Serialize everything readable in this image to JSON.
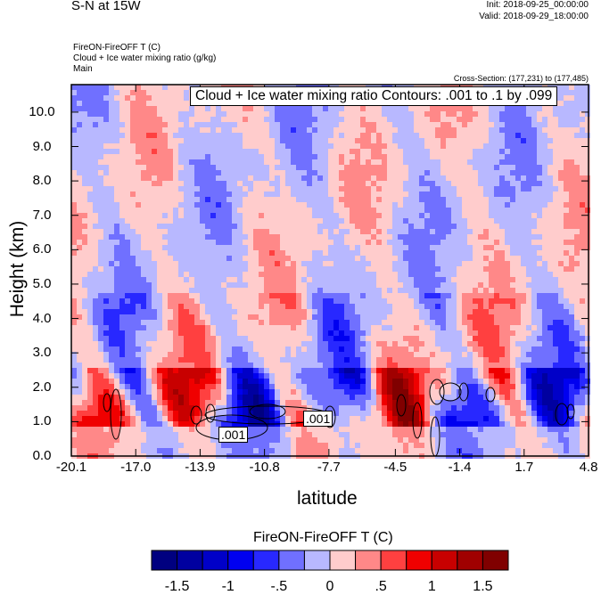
{
  "header": {
    "title": "S-N at 15W",
    "init": "Init: 2018-09-25_00:00:00",
    "valid": "Valid: 2018-09-29_18:00:00",
    "field1": "FireON-FireOFF T   (C)",
    "field2": "Cloud + Ice water mixing ratio   (g/kg)",
    "field3": "Main",
    "cross_section": "Cross-Section: (177,231) to (177,485)"
  },
  "chart_data": {
    "type": "heatmap",
    "title": "S-N at 15W",
    "xlabel": "latitude",
    "ylabel": "Height (km)",
    "xlim": [
      -20.1,
      4.8
    ],
    "ylim": [
      0.0,
      10.8
    ],
    "xticks": [
      "-20.1",
      "-17.0",
      "-13.9",
      "-10.8",
      "-7.7",
      "-4.5",
      "-1.4",
      "1.7",
      "4.8"
    ],
    "xtick_values": [
      -20.1,
      -17.0,
      -13.9,
      -10.8,
      -7.7,
      -4.5,
      -1.4,
      1.7,
      4.8
    ],
    "yticks": [
      "0.0",
      "1.0",
      "2.0",
      "3.0",
      "4.0",
      "5.0",
      "6.0",
      "7.0",
      "8.0",
      "9.0",
      "10.0"
    ],
    "ytick_values": [
      0,
      1,
      2,
      3,
      4,
      5,
      6,
      7,
      8,
      9,
      10
    ],
    "contour_info": "Cloud + Ice water mixing ratio Contours: .001 to .1 by .099",
    "contour_labels": [
      ".001",
      ".001"
    ],
    "colorbar": {
      "title": "FireON-FireOFF T  (C)",
      "levels": [
        -1.5,
        -1.25,
        -1,
        -0.75,
        -0.5,
        -0.25,
        0,
        0.25,
        0.5,
        0.75,
        1,
        1.25,
        1.5
      ],
      "labels": [
        "-1.5",
        "-1",
        "-.5",
        "0",
        ".5",
        "1",
        "1.5"
      ],
      "label_values": [
        -1.5,
        -1,
        -0.5,
        0,
        0.5,
        1,
        1.5
      ],
      "colors": [
        "#000080",
        "#0000a0",
        "#0000c8",
        "#0000f0",
        "#2828ff",
        "#7070ff",
        "#b8b8ff",
        "#ffcccc",
        "#ff8888",
        "#ff4040",
        "#f00000",
        "#c80000",
        "#a00000",
        "#800000"
      ]
    }
  }
}
